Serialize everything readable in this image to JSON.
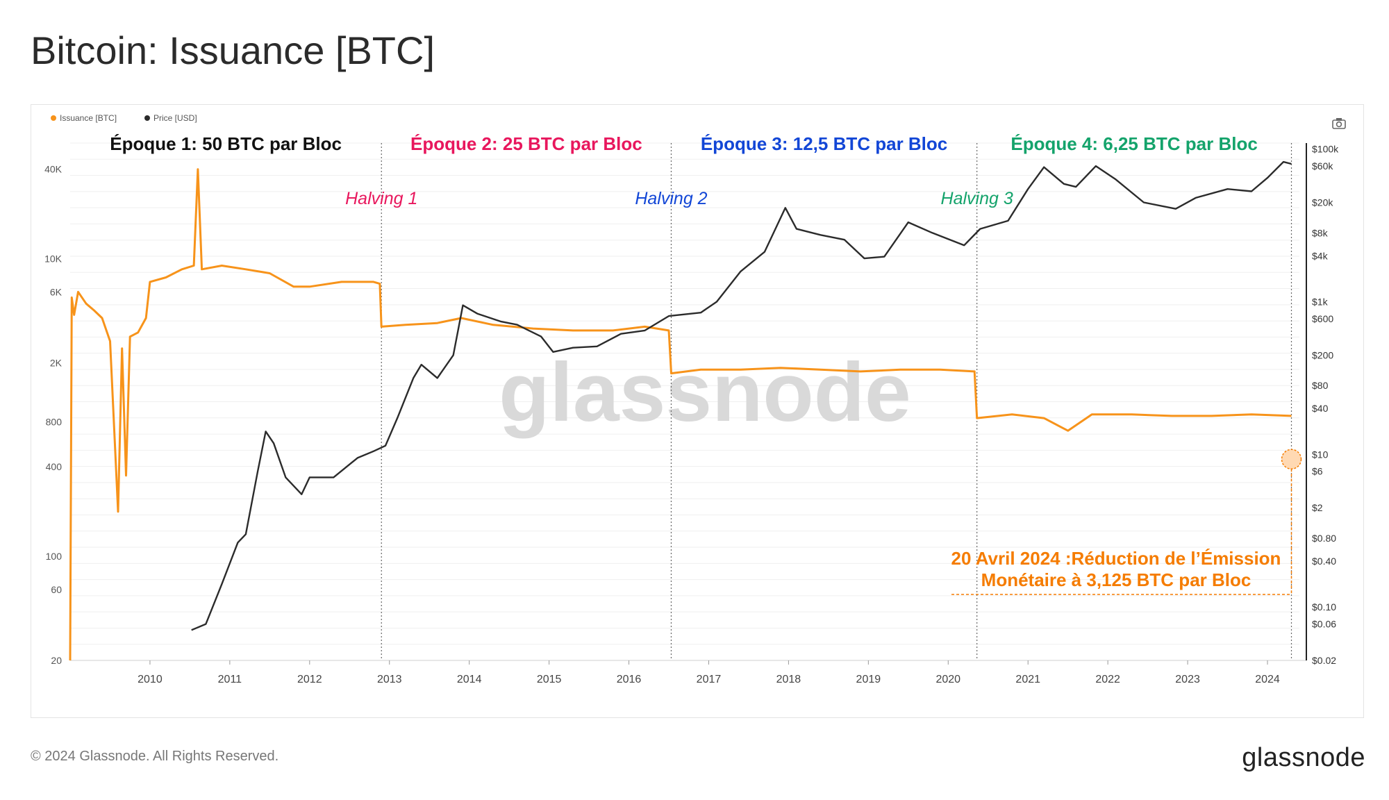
{
  "page_title": "Bitcoin: Issuance [BTC]",
  "footer": {
    "copyright": "© 2024 Glassnode. All Rights Reserved.",
    "logo": "glassnode"
  },
  "watermark": "glassnode",
  "camera_icon": "camera-icon",
  "colors": {
    "issuance": "#f7931a",
    "price": "#2b2b2b",
    "epoch1": "#111111",
    "epoch2": "#e8175d",
    "epoch3": "#1246d6",
    "epoch4": "#14a36b",
    "annotation": "#f57c00"
  },
  "chart_data": {
    "type": "line",
    "title": "Bitcoin: Issuance [BTC]",
    "legend": [
      {
        "label": "Issuance [BTC]",
        "color": "#f7931a"
      },
      {
        "label": "Price [USD]",
        "color": "#2b2b2b"
      }
    ],
    "legend_placement": "top-left",
    "x_ticks": [
      "2010",
      "2011",
      "2012",
      "2013",
      "2014",
      "2015",
      "2016",
      "2017",
      "2018",
      "2019",
      "2020",
      "2021",
      "2022",
      "2023",
      "2024"
    ],
    "x_range": [
      2009.0,
      2024.4
    ],
    "y_left": {
      "scale": "log",
      "range": [
        20,
        60000
      ],
      "ticks": [
        {
          "v": 40000,
          "label": "40K"
        },
        {
          "v": 10000,
          "label": "10K"
        },
        {
          "v": 6000,
          "label": "6K"
        },
        {
          "v": 2000,
          "label": "2K"
        },
        {
          "v": 800,
          "label": "800"
        },
        {
          "v": 400,
          "label": "400"
        },
        {
          "v": 100,
          "label": "100"
        },
        {
          "v": 60,
          "label": "60"
        },
        {
          "v": 20,
          "label": "20"
        }
      ]
    },
    "y_right": {
      "scale": "log",
      "range": [
        0.02,
        120000
      ],
      "ticks": [
        {
          "v": 100000,
          "label": "$100k"
        },
        {
          "v": 60000,
          "label": "$60k"
        },
        {
          "v": 20000,
          "label": "$20k"
        },
        {
          "v": 8000,
          "label": "$8k"
        },
        {
          "v": 4000,
          "label": "$4k"
        },
        {
          "v": 1000,
          "label": "$1k"
        },
        {
          "v": 600,
          "label": "$600"
        },
        {
          "v": 200,
          "label": "$200"
        },
        {
          "v": 80,
          "label": "$80"
        },
        {
          "v": 40,
          "label": "$40"
        },
        {
          "v": 10,
          "label": "$10"
        },
        {
          "v": 6,
          "label": "$6"
        },
        {
          "v": 2,
          "label": "$2"
        },
        {
          "v": 0.8,
          "label": "$0.80"
        },
        {
          "v": 0.4,
          "label": "$0.40"
        },
        {
          "v": 0.1,
          "label": "$0.10"
        },
        {
          "v": 0.06,
          "label": "$0.06"
        },
        {
          "v": 0.02,
          "label": "$0.02"
        }
      ]
    },
    "epochs": [
      {
        "label": "Époque 1: 50 BTC par Bloc",
        "key": "epoch1",
        "from": 2009.0,
        "to": 2012.9
      },
      {
        "label": "Époque 2: 25 BTC par Bloc",
        "key": "epoch2",
        "from": 2012.9,
        "to": 2016.53
      },
      {
        "label": "Époque 3: 12,5 BTC par Bloc",
        "key": "epoch3",
        "from": 2016.53,
        "to": 2020.36
      },
      {
        "label": "Époque 4: 6,25 BTC par Bloc",
        "key": "epoch4",
        "from": 2020.36,
        "to": 2024.3
      }
    ],
    "halvings": [
      {
        "label": "Halving 1",
        "x": 2012.9,
        "key": "epoch2"
      },
      {
        "label": "Halving 2",
        "x": 2016.53,
        "key": "epoch3"
      },
      {
        "label": "Halving 3",
        "x": 2020.36,
        "key": "epoch4"
      }
    ],
    "next_halving_x": 2024.3,
    "annotation": {
      "line1": "20 Avril 2024 :Réduction de l’Émission",
      "line2": "Monétaire à 3,125 BTC par Bloc",
      "target_value": 450
    },
    "issuance_series": [
      [
        2009.0,
        20
      ],
      [
        2009.02,
        5500
      ],
      [
        2009.05,
        4200
      ],
      [
        2009.1,
        6000
      ],
      [
        2009.2,
        5000
      ],
      [
        2009.3,
        4500
      ],
      [
        2009.4,
        4000
      ],
      [
        2009.5,
        2800
      ],
      [
        2009.6,
        200
      ],
      [
        2009.65,
        2500
      ],
      [
        2009.7,
        350
      ],
      [
        2009.75,
        3000
      ],
      [
        2009.85,
        3200
      ],
      [
        2009.95,
        4000
      ],
      [
        2010.0,
        7000
      ],
      [
        2010.2,
        7500
      ],
      [
        2010.4,
        8500
      ],
      [
        2010.55,
        9000
      ],
      [
        2010.6,
        40000
      ],
      [
        2010.65,
        8500
      ],
      [
        2010.9,
        9000
      ],
      [
        2011.2,
        8500
      ],
      [
        2011.5,
        8000
      ],
      [
        2011.8,
        6500
      ],
      [
        2012.0,
        6500
      ],
      [
        2012.4,
        7000
      ],
      [
        2012.8,
        7000
      ],
      [
        2012.88,
        6800
      ],
      [
        2012.9,
        3500
      ],
      [
        2013.2,
        3600
      ],
      [
        2013.6,
        3700
      ],
      [
        2013.9,
        4000
      ],
      [
        2014.3,
        3600
      ],
      [
        2014.8,
        3400
      ],
      [
        2015.3,
        3300
      ],
      [
        2015.8,
        3300
      ],
      [
        2016.2,
        3500
      ],
      [
        2016.5,
        3300
      ],
      [
        2016.53,
        1700
      ],
      [
        2016.9,
        1800
      ],
      [
        2017.4,
        1800
      ],
      [
        2017.9,
        1850
      ],
      [
        2018.4,
        1800
      ],
      [
        2018.9,
        1750
      ],
      [
        2019.4,
        1800
      ],
      [
        2019.9,
        1800
      ],
      [
        2020.33,
        1750
      ],
      [
        2020.36,
        850
      ],
      [
        2020.8,
        900
      ],
      [
        2021.2,
        850
      ],
      [
        2021.5,
        700
      ],
      [
        2021.8,
        900
      ],
      [
        2022.3,
        900
      ],
      [
        2022.8,
        880
      ],
      [
        2023.3,
        880
      ],
      [
        2023.8,
        900
      ],
      [
        2024.3,
        880
      ]
    ],
    "price_series": [
      [
        2010.52,
        0.05
      ],
      [
        2010.7,
        0.06
      ],
      [
        2010.9,
        0.2
      ],
      [
        2011.1,
        0.7
      ],
      [
        2011.2,
        0.9
      ],
      [
        2011.35,
        6
      ],
      [
        2011.45,
        20
      ],
      [
        2011.55,
        14
      ],
      [
        2011.7,
        5
      ],
      [
        2011.9,
        3
      ],
      [
        2012.0,
        5
      ],
      [
        2012.3,
        5
      ],
      [
        2012.6,
        9
      ],
      [
        2012.8,
        11
      ],
      [
        2012.95,
        13
      ],
      [
        2013.1,
        30
      ],
      [
        2013.3,
        100
      ],
      [
        2013.4,
        150
      ],
      [
        2013.6,
        100
      ],
      [
        2013.8,
        200
      ],
      [
        2013.92,
        900
      ],
      [
        2014.1,
        700
      ],
      [
        2014.4,
        550
      ],
      [
        2014.6,
        500
      ],
      [
        2014.9,
        350
      ],
      [
        2015.05,
        220
      ],
      [
        2015.3,
        250
      ],
      [
        2015.6,
        260
      ],
      [
        2015.9,
        380
      ],
      [
        2016.2,
        420
      ],
      [
        2016.5,
        650
      ],
      [
        2016.9,
        720
      ],
      [
        2017.1,
        1000
      ],
      [
        2017.4,
        2500
      ],
      [
        2017.7,
        4500
      ],
      [
        2017.96,
        17000
      ],
      [
        2018.1,
        9000
      ],
      [
        2018.4,
        7500
      ],
      [
        2018.7,
        6500
      ],
      [
        2018.95,
        3700
      ],
      [
        2019.2,
        3900
      ],
      [
        2019.5,
        11000
      ],
      [
        2019.8,
        8000
      ],
      [
        2020.2,
        5500
      ],
      [
        2020.4,
        9000
      ],
      [
        2020.75,
        11500
      ],
      [
        2021.0,
        30000
      ],
      [
        2021.2,
        58000
      ],
      [
        2021.45,
        35000
      ],
      [
        2021.6,
        32000
      ],
      [
        2021.85,
        60000
      ],
      [
        2022.1,
        40000
      ],
      [
        2022.45,
        20000
      ],
      [
        2022.85,
        16500
      ],
      [
        2023.1,
        23000
      ],
      [
        2023.5,
        30000
      ],
      [
        2023.8,
        28000
      ],
      [
        2024.0,
        42000
      ],
      [
        2024.2,
        68000
      ],
      [
        2024.3,
        64000
      ]
    ]
  }
}
